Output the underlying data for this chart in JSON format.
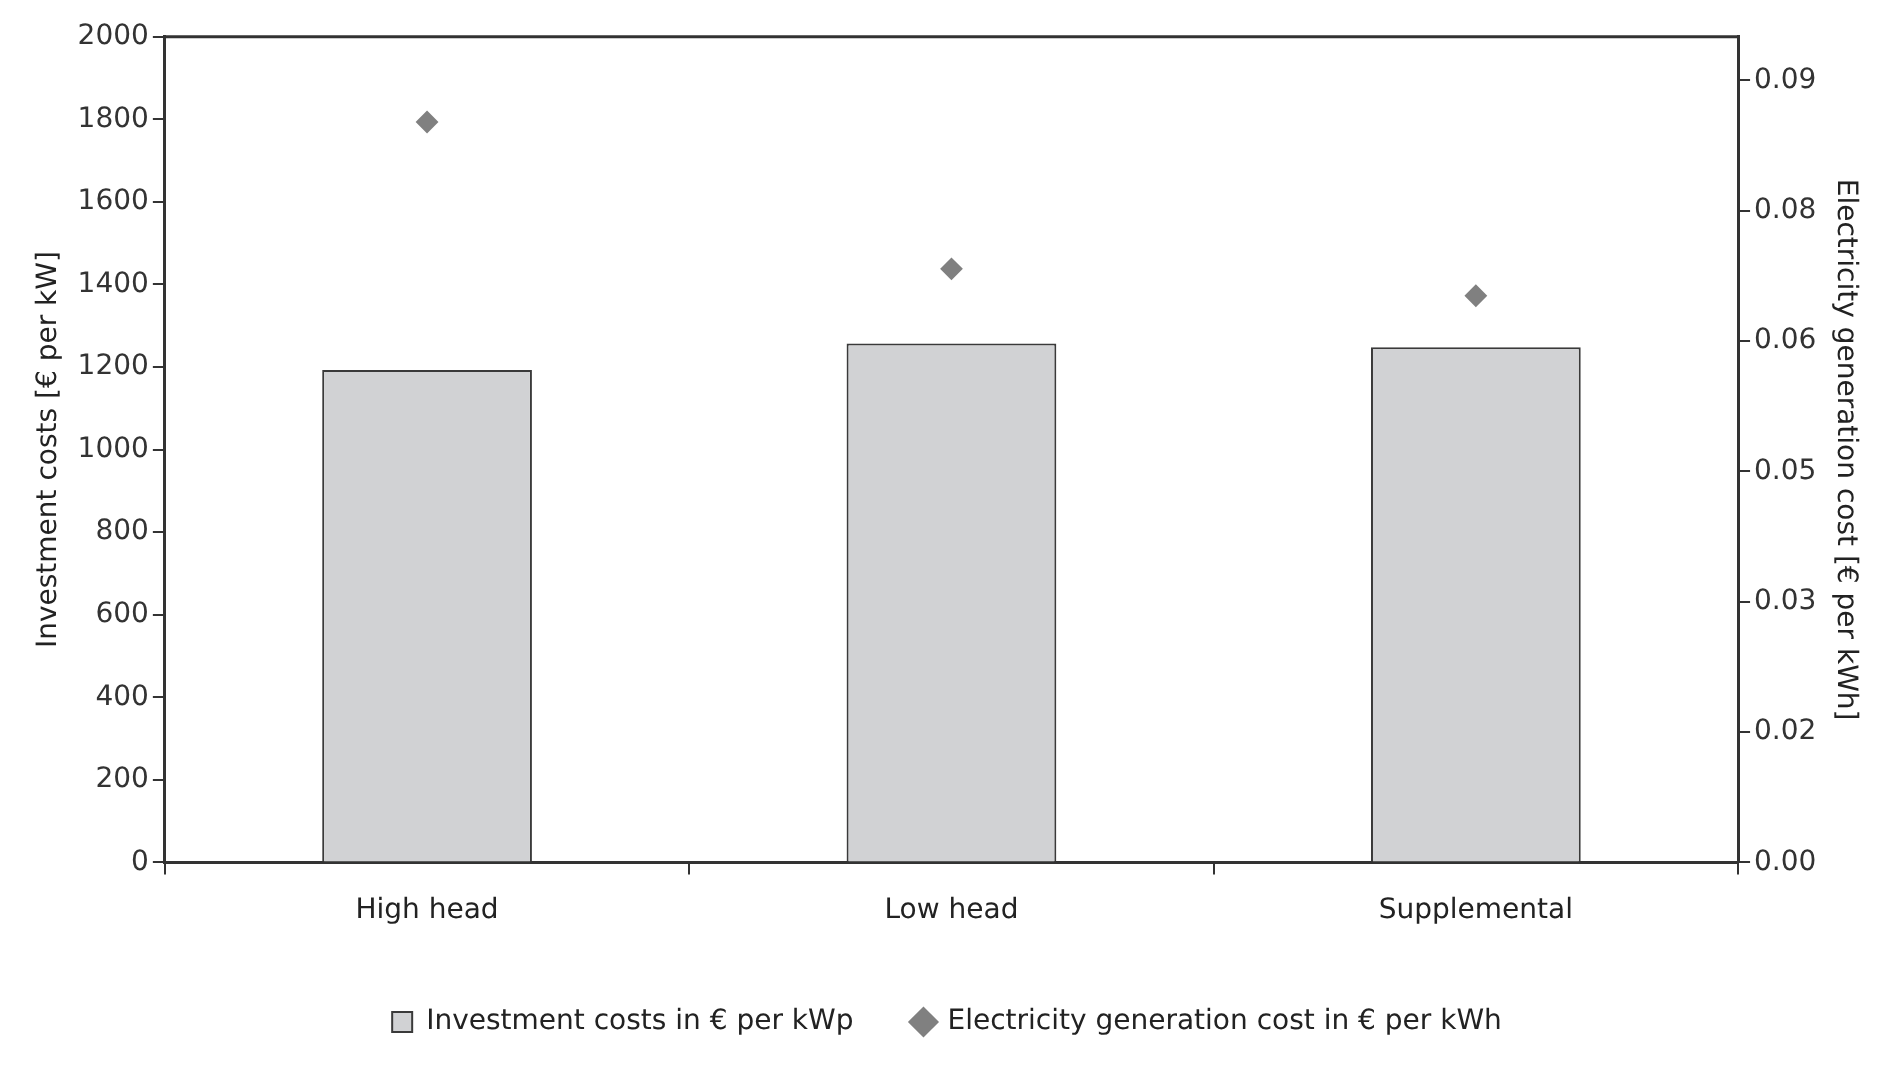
{
  "chart_data": {
    "type": "bar",
    "categories": [
      "High head",
      "Low head",
      "Supplemental"
    ],
    "ylabel": "Investment costs [€ per kW]",
    "y2label": "Electricity generation cost [€ per kWh]",
    "ylim": [
      0,
      2000
    ],
    "yticks": [
      0,
      200,
      400,
      600,
      800,
      1000,
      1200,
      1400,
      1600,
      1800,
      2000
    ],
    "y2lim": [
      0,
      0.095
    ],
    "y2ticks": [
      {
        "value": 0,
        "label": "0.00"
      },
      {
        "value": 0.015,
        "label": "0.02"
      },
      {
        "value": 0.03,
        "label": "0.03"
      },
      {
        "value": 0.045,
        "label": "0.05"
      },
      {
        "value": 0.06,
        "label": "0.06"
      },
      {
        "value": 0.075,
        "label": "0.08"
      },
      {
        "value": 0.09,
        "label": "0.09"
      }
    ],
    "grid": false,
    "legend": "bottom",
    "series": [
      {
        "name": "Investment costs in € per kWp",
        "color": "#d1d2d4",
        "values": [
          1193,
          1257,
          1248
        ]
      },
      {
        "name": "Electricity generation cost in € per kWh",
        "type": "scatter",
        "axis": "y2",
        "marker": "diamond",
        "color": "#808080",
        "x": [
          "High head",
          "Low head",
          "Supplemental"
        ],
        "values": [
          0.0852,
          0.0683,
          0.0652
        ]
      }
    ]
  }
}
